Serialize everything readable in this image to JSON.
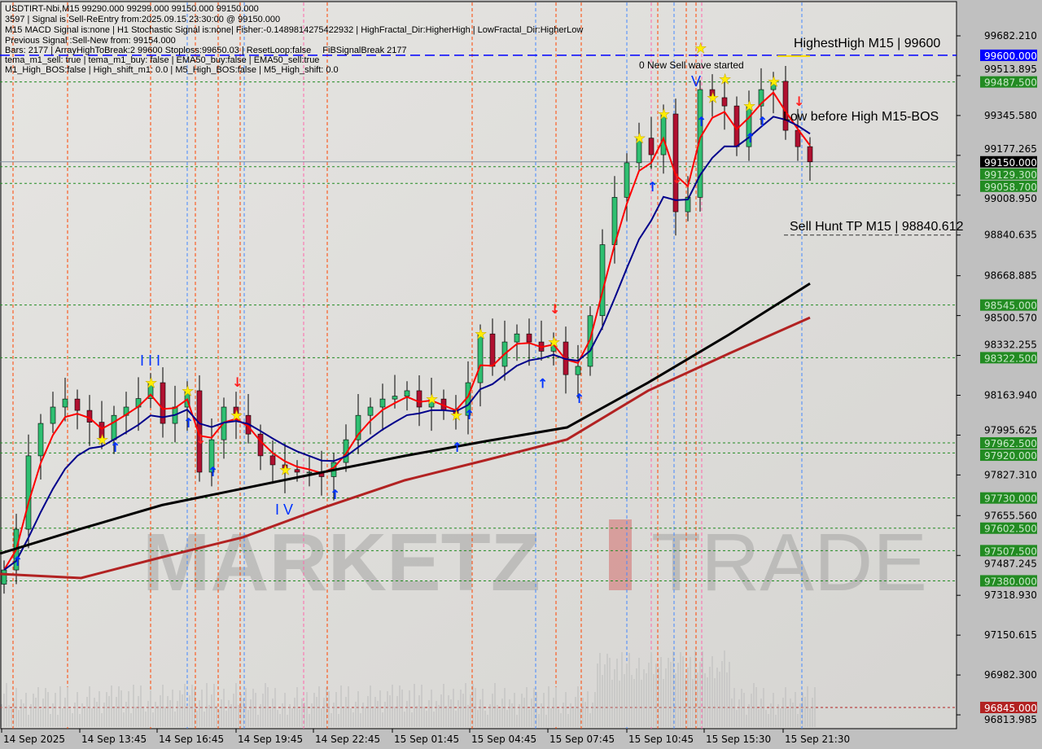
{
  "info_lines": [
    "USDTIRT-Nbi,M15  99290.000 99299.000 99150.000 99150.000",
    "3597 | Signal is Sell-ReEntry from:2025.09.15 23:30:00 @ 99150.000",
    "M15 MACD Signal is:none | H1 Stochastic Signal is:none| Fisher:-0.1489814275422932 | HighFractal_Dir:HigherHigh | LowFractal_Dir:HigherLow",
    "Previous Signal :Sell-New from: 99154.000",
    "Bars: 2177 | ArrayHighToBreak:2 99600 Stoploss:99650.03 | ResetLoop:false",
    "tema_m1_sell: true | tema_m1_buy: false | EMA50_buy:false | EMA50_sell:true",
    "M1_High_BOS:false | High_shift_m1: 0.0 | M5_High_BOS:false | M5_High_shift: 0.0"
  ],
  "overlay_text": "FiBSignalBreak 2177",
  "annotations": {
    "highest_high": "HighestHigh   M15 | 99600",
    "new_sell_wave": "0 New Sell wave started",
    "low_before_high": "Low before High   M15-BOS",
    "sell_hunt_tp": "Sell Hunt TP M15 | 98840.612",
    "wave_iii": "I I I",
    "wave_iv": "I V",
    "wave_v": "V"
  },
  "watermark": {
    "left": "MARKETZ",
    "right": "TRADE"
  },
  "colors": {
    "background": "#dcdbd8",
    "axis_bg": "#c0c0c0",
    "bull_candle": "#2fbf71",
    "bear_candle": "#b01030",
    "level_green": "#228b22",
    "level_red": "#b22222",
    "highest_high": "#0000ff",
    "fast_ma": "#ff0000",
    "mid_ma": "#00008b",
    "slow_ma_black": "#000000",
    "slow_ma_red": "#b22222",
    "arrow_up": "#0033ff",
    "arrow_down": "#ff2020",
    "star": "#ffee00"
  },
  "chart_data": {
    "type": "candlestick",
    "symbol": "USDTIRT-Nbi",
    "timeframe": "M15",
    "ylim": [
      96760,
      99800
    ],
    "y_ticks": [
      99682.21,
      99513.895,
      99345.58,
      99177.265,
      99008.95,
      98840.635,
      98668.885,
      98500.57,
      98332.255,
      98163.94,
      97995.625,
      97827.31,
      97655.56,
      97487.245,
      97318.93,
      97150.615,
      96982.3,
      96813.985
    ],
    "x_ticks": [
      "14 Sep 2025",
      "14 Sep 13:45",
      "14 Sep 16:45",
      "14 Sep 19:45",
      "14 Sep 22:45",
      "15 Sep 01:45",
      "15 Sep 04:45",
      "15 Sep 07:45",
      "15 Sep 10:45",
      "15 Sep 15:30",
      "15 Sep 21:30"
    ],
    "closes": [
      97426,
      97598,
      97908,
      98045,
      98114,
      98148,
      98100,
      98050,
      97976,
      98079,
      98114,
      98150,
      98217,
      98045,
      98114,
      98183,
      97839,
      97976,
      98114,
      98079,
      98000,
      97908,
      97870,
      97850,
      97839,
      97839,
      97820,
      97880,
      97976,
      98079,
      98114,
      98148,
      98160,
      98183,
      98114,
      98148,
      98100,
      98079,
      98217,
      98423,
      98286,
      98389,
      98423,
      98389,
      98350,
      98389,
      98251,
      98286,
      98500,
      98800,
      99000,
      99146,
      99250,
      99180,
      99352,
      98939,
      99000,
      99455,
      99421,
      99386,
      99214,
      99386,
      99455,
      99490,
      99283,
      99214,
      99150
    ],
    "slow_ma_black": [
      97495,
      97600,
      97700,
      97770,
      97840,
      97908,
      97970,
      98028,
      98217,
      98420,
      98636
    ],
    "slow_ma_red": [
      97409,
      97392,
      97480,
      97564,
      97690,
      97805,
      97890,
      97977,
      98183,
      98340,
      98492
    ],
    "current_price": 99150.0,
    "price_labels": [
      {
        "value": 99600.0,
        "text": "99600.000",
        "kind": "blue"
      },
      {
        "value": 99487.5,
        "text": "99487.500",
        "kind": "green"
      },
      {
        "value": 99150.0,
        "text": "99150.000",
        "kind": "current"
      },
      {
        "value": 99129.3,
        "text": "99129.300",
        "kind": "green"
      },
      {
        "value": 99058.7,
        "text": "99058.700",
        "kind": "green"
      },
      {
        "value": 98545.0,
        "text": "98545.000",
        "kind": "green"
      },
      {
        "value": 98322.5,
        "text": "98322.500",
        "kind": "green"
      },
      {
        "value": 97962.5,
        "text": "97962.500",
        "kind": "green"
      },
      {
        "value": 97920.0,
        "text": "97920.000",
        "kind": "green"
      },
      {
        "value": 97730.0,
        "text": "97730.000",
        "kind": "green"
      },
      {
        "value": 97602.5,
        "text": "97602.500",
        "kind": "green"
      },
      {
        "value": 97507.5,
        "text": "97507.500",
        "kind": "green"
      },
      {
        "value": 97380.0,
        "text": "97380.000",
        "kind": "green"
      },
      {
        "value": 96845.0,
        "text": "96845.000",
        "kind": "red"
      }
    ],
    "sell_hunt_tp": 98840.612,
    "highest_high": 99600,
    "buy_arrows_idx": [
      1,
      9,
      15,
      17,
      27,
      37,
      38,
      44,
      47,
      53,
      57,
      61,
      62
    ],
    "sell_arrows_idx": [
      16,
      19,
      45,
      55,
      65
    ],
    "stars_idx": [
      8,
      12,
      15,
      19,
      23,
      35,
      37,
      39,
      45,
      52,
      54,
      57,
      58,
      59,
      61,
      63
    ]
  }
}
